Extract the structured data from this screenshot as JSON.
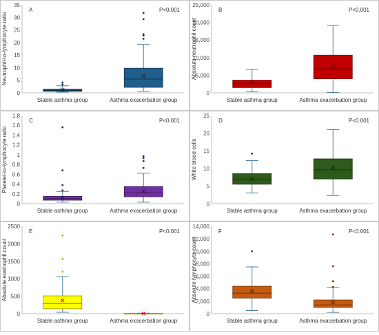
{
  "chart_data": [
    {
      "type": "box",
      "panel_label": "A",
      "annotation": "P<0.001",
      "ylabel": "Neutrophil-to-lymphocyte ratio",
      "categories": [
        "Stable asthma group",
        "Asthma exacerbation group"
      ],
      "ylim": [
        0,
        35
      ],
      "yticks": [
        "0",
        "5",
        "10",
        "15",
        "20",
        "25",
        "30",
        "35"
      ],
      "tick_values": [
        0,
        5,
        10,
        15,
        20,
        25,
        30,
        35
      ],
      "grid": false,
      "colors": [
        "#1f5f8b",
        "#1f5f8b"
      ],
      "boxes": [
        {
          "min": 0.3,
          "q1": 0.6,
          "median": 1.0,
          "q3": 1.5,
          "max": 2.8,
          "mean": 1.2,
          "outliers": [
            3.3,
            4.1
          ]
        },
        {
          "min": 0.6,
          "q1": 2.2,
          "median": 5.5,
          "q3": 9.8,
          "max": 19.2,
          "mean": 6.8,
          "outliers": [
            21.5,
            22.8,
            23.3,
            29.3,
            31.8
          ]
        }
      ]
    },
    {
      "type": "box",
      "panel_label": "B",
      "annotation": "P<0.001",
      "ylabel": "Absolute neutrophil count",
      "categories": [
        "Stable asthma group",
        "Asthma exacerbation group"
      ],
      "ylim": [
        0,
        25000
      ],
      "yticks": [
        "0",
        "5,000",
        "10,000",
        "15,000",
        "20,000",
        "25,000"
      ],
      "tick_values": [
        0,
        5000,
        10000,
        15000,
        20000,
        25000
      ],
      "grid": false,
      "colors": [
        "#c00000",
        "#c00000"
      ],
      "boxes": [
        {
          "min": 300,
          "q1": 1500,
          "median": 2600,
          "q3": 3600,
          "max": 6600,
          "mean": 2800,
          "outliers": []
        },
        {
          "min": 100,
          "q1": 4000,
          "median": 6800,
          "q3": 10700,
          "max": 19200,
          "mean": 7500,
          "outliers": []
        }
      ]
    },
    {
      "type": "box",
      "panel_label": "C",
      "annotation": "P<0.001",
      "ylabel": "Platelet-to-lymphocyte ratio",
      "categories": [
        "Stable asthma group",
        "Asthma exacerbation group"
      ],
      "ylim": [
        0,
        1.8
      ],
      "yticks": [
        "0",
        "0.2",
        "0.4",
        "0.6",
        "0.8",
        "1",
        "1.2",
        "1.4",
        "1.6",
        "1.8"
      ],
      "tick_values": [
        0,
        0.2,
        0.4,
        0.6,
        0.8,
        1.0,
        1.2,
        1.4,
        1.6,
        1.8
      ],
      "grid": false,
      "colors": [
        "#7030a0",
        "#7030a0"
      ],
      "boxes": [
        {
          "min": 0.03,
          "q1": 0.07,
          "median": 0.1,
          "q3": 0.15,
          "max": 0.25,
          "mean": 0.12,
          "outliers": [
            0.27,
            0.38,
            0.68,
            1.56
          ]
        },
        {
          "min": 0.03,
          "q1": 0.14,
          "median": 0.22,
          "q3": 0.35,
          "max": 0.62,
          "mean": 0.25,
          "outliers": [
            0.73,
            0.87,
            0.93,
            0.97
          ]
        }
      ]
    },
    {
      "type": "box",
      "panel_label": "D",
      "annotation": "P<0.001",
      "ylabel": "White blood cells",
      "categories": [
        "Stable asthma group",
        "Asthma exacerbation group"
      ],
      "ylim": [
        0,
        25
      ],
      "yticks": [
        "0",
        "5",
        "10",
        "15",
        "20",
        "25"
      ],
      "tick_values": [
        0,
        5,
        10,
        15,
        20,
        25
      ],
      "grid": false,
      "colors": [
        "#2e5a1c",
        "#2e5a1c"
      ],
      "boxes": [
        {
          "min": 3.0,
          "q1": 5.5,
          "median": 6.8,
          "q3": 8.5,
          "max": 12.2,
          "mean": 7.0,
          "outliers": [
            14.2
          ]
        },
        {
          "min": 2.3,
          "q1": 7.0,
          "median": 9.6,
          "q3": 12.7,
          "max": 21.0,
          "mean": 10.2,
          "outliers": []
        }
      ]
    },
    {
      "type": "box",
      "panel_label": "E",
      "annotation": "P<0.001",
      "ylabel": "Absolute eosinophil count",
      "categories": [
        "Stable asthma group",
        "Asthma exacerbation group"
      ],
      "ylim": [
        0,
        2500
      ],
      "yticks": [
        "0",
        "500",
        "1000",
        "1500",
        "2000",
        "2500"
      ],
      "tick_values": [
        0,
        500,
        1000,
        1500,
        2000,
        2500
      ],
      "grid": false,
      "colors": [
        "#ffff00",
        "#ffff00"
      ],
      "boxes": [
        {
          "min": 40,
          "q1": 140,
          "median": 290,
          "q3": 510,
          "max": 1060,
          "mean": 380,
          "outliers": [
            1200,
            1570,
            2240
          ]
        },
        {
          "min": 0,
          "q1": 0,
          "median": 0,
          "q3": 8,
          "max": 15,
          "mean": 5,
          "outliers": []
        }
      ]
    },
    {
      "type": "box",
      "panel_label": "F",
      "annotation": "P<0.001",
      "ylabel": "Absolute lymphocyte count",
      "categories": [
        "Stable asthma group",
        "Asthma exacerbation group"
      ],
      "ylim": [
        0,
        14000
      ],
      "yticks": [
        "0",
        "2,000",
        "4,000",
        "6,000",
        "8,000",
        "10,000",
        "12,000",
        "14,000"
      ],
      "tick_values": [
        0,
        2000,
        4000,
        6000,
        8000,
        10000,
        12000,
        14000
      ],
      "grid": false,
      "colors": [
        "#c55a11",
        "#c55a11"
      ],
      "boxes": [
        {
          "min": 500,
          "q1": 2500,
          "median": 3300,
          "q3": 4400,
          "max": 7500,
          "mean": 3600,
          "outliers": [
            10000
          ]
        },
        {
          "min": 200,
          "q1": 1000,
          "median": 1400,
          "q3": 2200,
          "max": 4200,
          "mean": 1800,
          "outliers": [
            4300,
            5200,
            7600,
            12700
          ]
        }
      ]
    }
  ]
}
